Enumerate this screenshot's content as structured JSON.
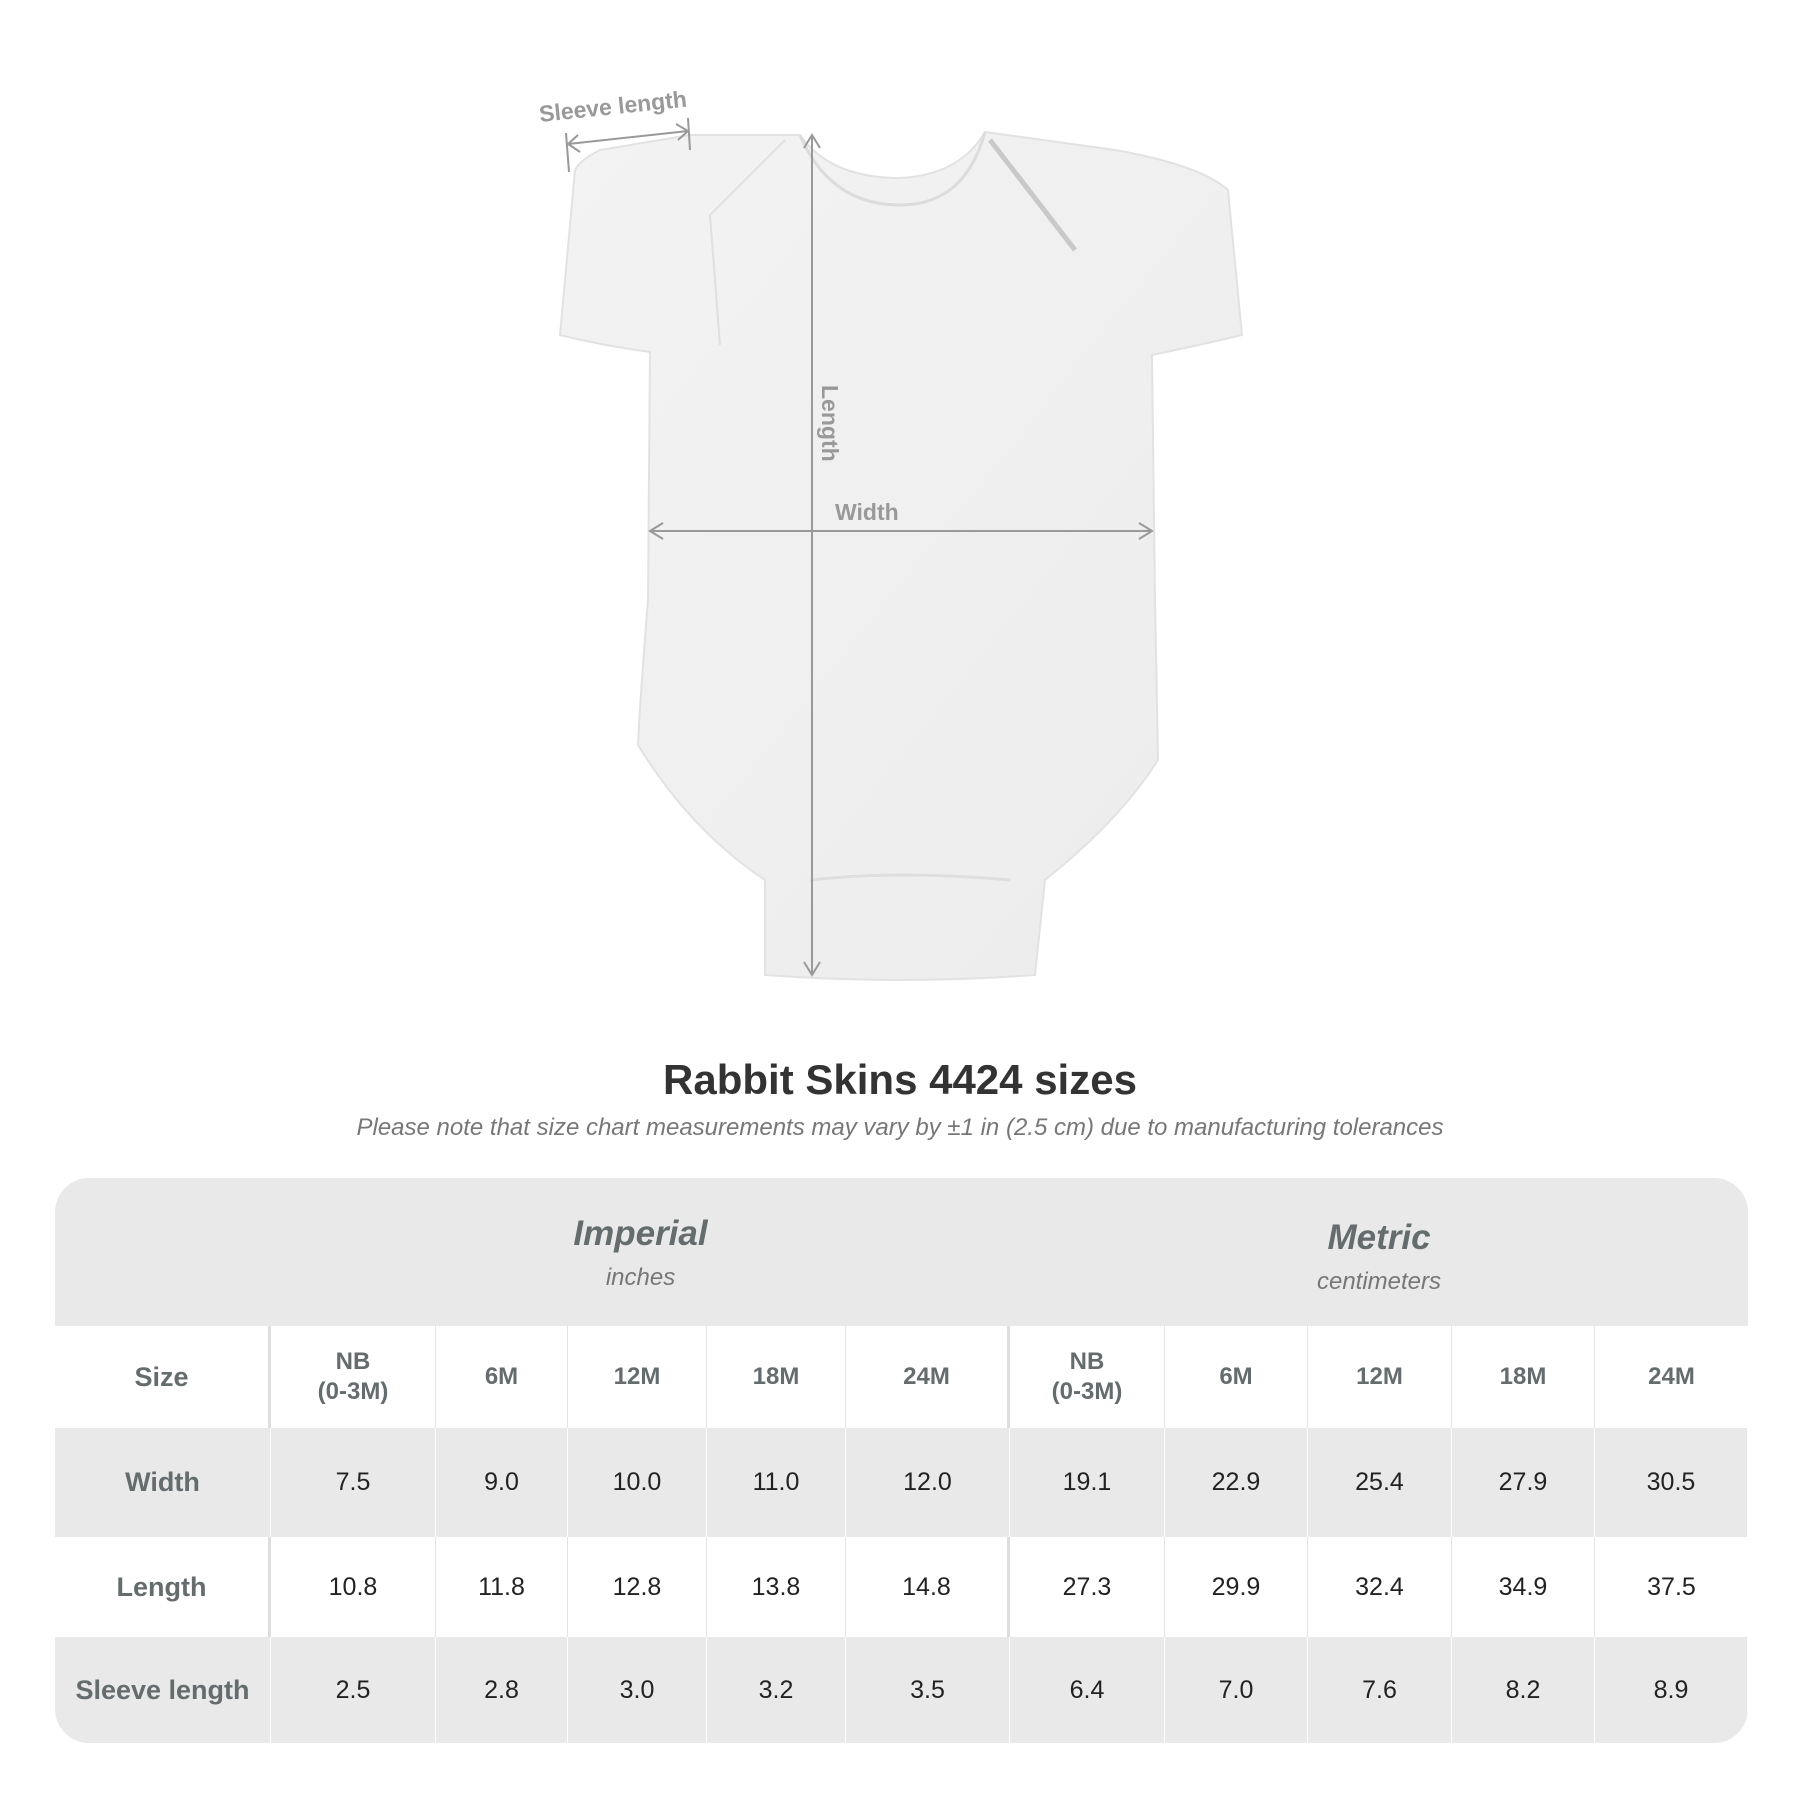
{
  "diagram": {
    "labels": {
      "sleeve": "Sleeve length",
      "length": "Length",
      "width": "Width"
    }
  },
  "title": "Rabbit Skins 4424 sizes",
  "subtitle": "Please note that size chart measurements may vary by ±1 in (2.5 cm) due to manufacturing tolerances",
  "table": {
    "imperial": {
      "system": "Imperial",
      "unit": "inches"
    },
    "metric": {
      "system": "Metric",
      "unit": "centimeters"
    },
    "size_label": "Size",
    "sizes": [
      "NB\n(0-3M)",
      "6M",
      "12M",
      "18M",
      "24M"
    ],
    "rows": [
      {
        "label": "Width",
        "imperial": [
          "7.5",
          "9.0",
          "10.0",
          "11.0",
          "12.0"
        ],
        "metric": [
          "19.1",
          "22.9",
          "25.4",
          "27.9",
          "30.5"
        ]
      },
      {
        "label": "Length",
        "imperial": [
          "10.8",
          "11.8",
          "12.8",
          "13.8",
          "14.8"
        ],
        "metric": [
          "27.3",
          "29.9",
          "32.4",
          "34.9",
          "37.5"
        ]
      },
      {
        "label": "Sleeve length",
        "imperial": [
          "2.5",
          "2.8",
          "3.0",
          "3.2",
          "3.5"
        ],
        "metric": [
          "6.4",
          "7.0",
          "7.6",
          "8.2",
          "8.9"
        ]
      }
    ]
  }
}
